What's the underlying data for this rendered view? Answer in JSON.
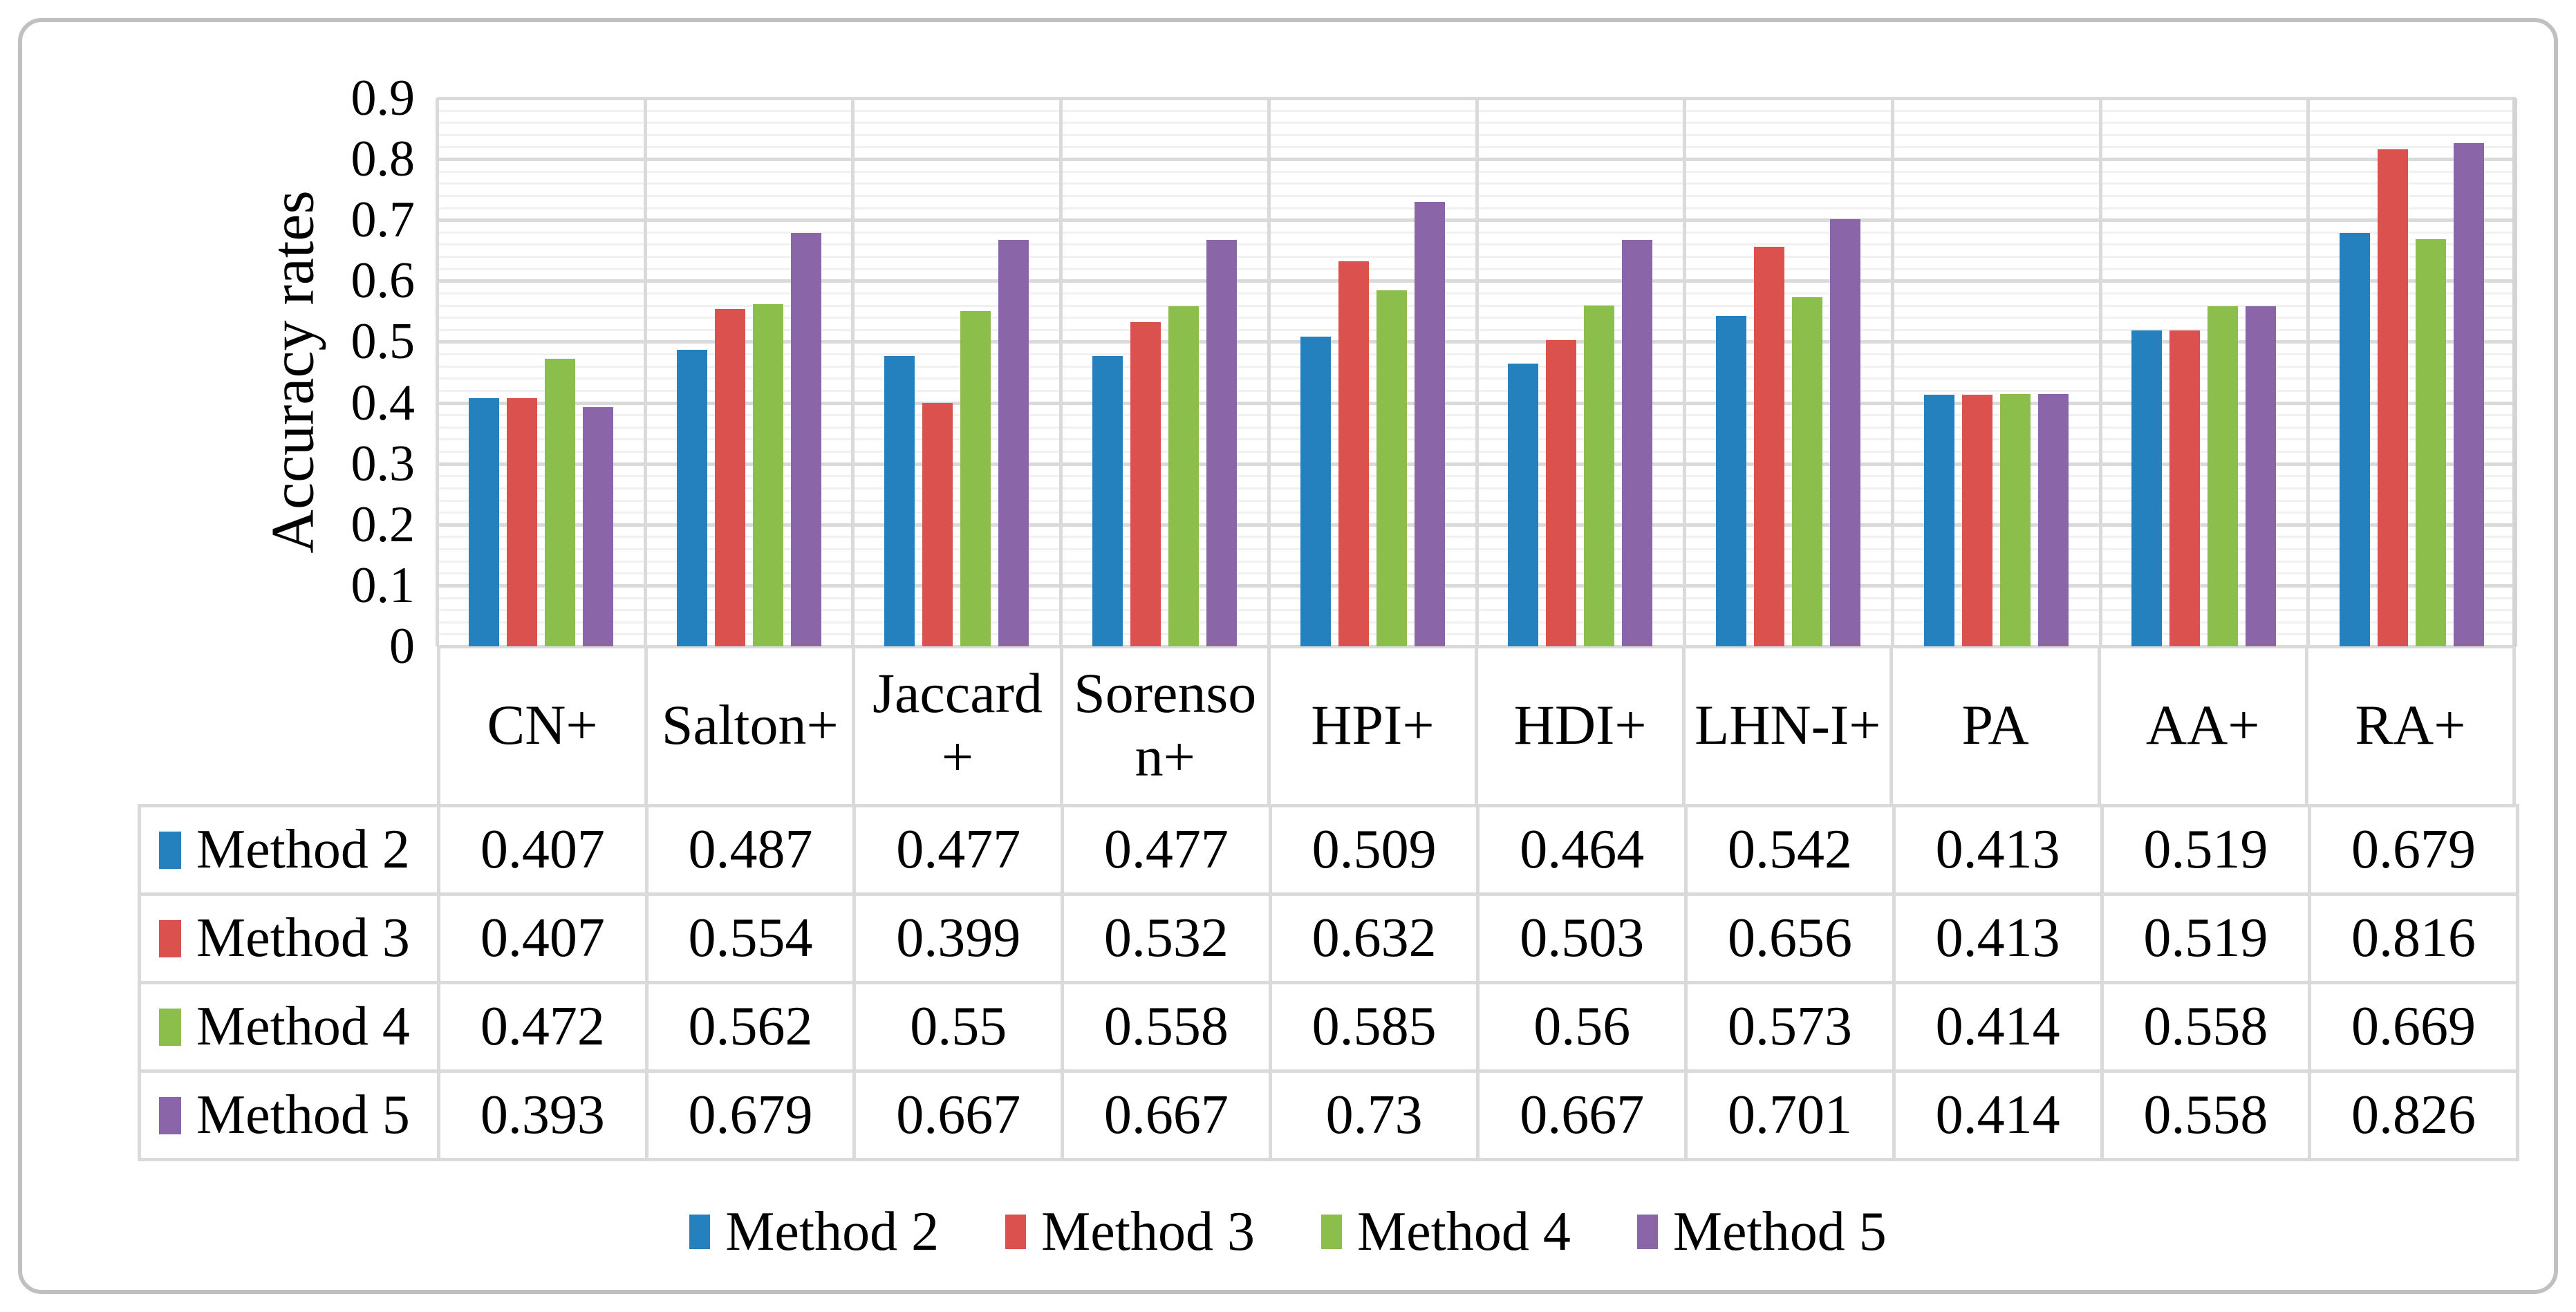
{
  "chart_data": {
    "type": "bar",
    "title": "",
    "ylabel": "Accuracy rates",
    "xlabel": "",
    "ylim": [
      0,
      0.9
    ],
    "ytick_step": 0.1,
    "minor_gridline_step": 0.02,
    "grid": true,
    "legend_position": "bottom",
    "yticks": [
      "0.9",
      "0.8",
      "0.7",
      "0.6",
      "0.5",
      "0.4",
      "0.3",
      "0.2",
      "0.1",
      "0"
    ],
    "categories": [
      "CN+",
      "Salton+",
      "Jaccard +",
      "Sorenson+",
      "HPI+",
      "HDI+",
      "LHN-I+",
      "PA",
      "AA+",
      "RA+"
    ],
    "series": [
      {
        "name": "Method 2",
        "color": "#2481BE",
        "values": [
          0.407,
          0.487,
          0.477,
          0.477,
          0.509,
          0.464,
          0.542,
          0.413,
          0.519,
          0.679
        ]
      },
      {
        "name": "Method 3",
        "color": "#DA514E",
        "values": [
          0.407,
          0.554,
          0.399,
          0.532,
          0.632,
          0.503,
          0.656,
          0.413,
          0.519,
          0.816
        ]
      },
      {
        "name": "Method 4",
        "color": "#8CBE4B",
        "values": [
          0.472,
          0.562,
          0.55,
          0.558,
          0.585,
          0.56,
          0.573,
          0.414,
          0.558,
          0.669
        ]
      },
      {
        "name": "Method 5",
        "color": "#8A66A9",
        "values": [
          0.393,
          0.679,
          0.667,
          0.667,
          0.73,
          0.667,
          0.701,
          0.414,
          0.558,
          0.826
        ]
      }
    ]
  },
  "legend": {
    "items": [
      "Method 2",
      "Method 3",
      "Method 4",
      "Method 5"
    ]
  }
}
